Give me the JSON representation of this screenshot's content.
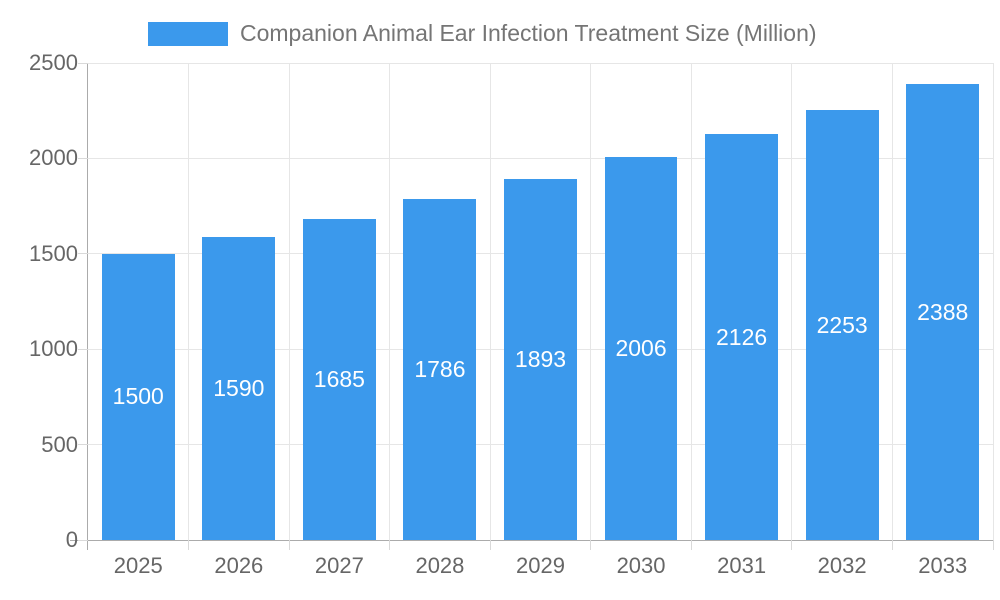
{
  "chart_data": {
    "type": "bar",
    "title": "Companion Animal Ear Infection Treatment Size (Million)",
    "categories": [
      "2025",
      "2026",
      "2027",
      "2028",
      "2029",
      "2030",
      "2031",
      "2032",
      "2033"
    ],
    "values": [
      1500,
      1590,
      1685,
      1786,
      1893,
      2006,
      2126,
      2253,
      2388
    ],
    "xlabel": "",
    "ylabel": "",
    "ylim": [
      0,
      2500
    ],
    "yticks": [
      0,
      500,
      1000,
      1500,
      2000,
      2500
    ],
    "grid": true,
    "legend_position": "top",
    "value_labels": "centered-inside-bars"
  },
  "colors": {
    "bar": "#3B99EC",
    "value_label": "#FFFFFF",
    "axis_text": "#666666",
    "legend_text": "#757575",
    "gridline": "#E6E6E6",
    "axis_line": "#ABABAB",
    "tick": "#D9D9D9"
  }
}
